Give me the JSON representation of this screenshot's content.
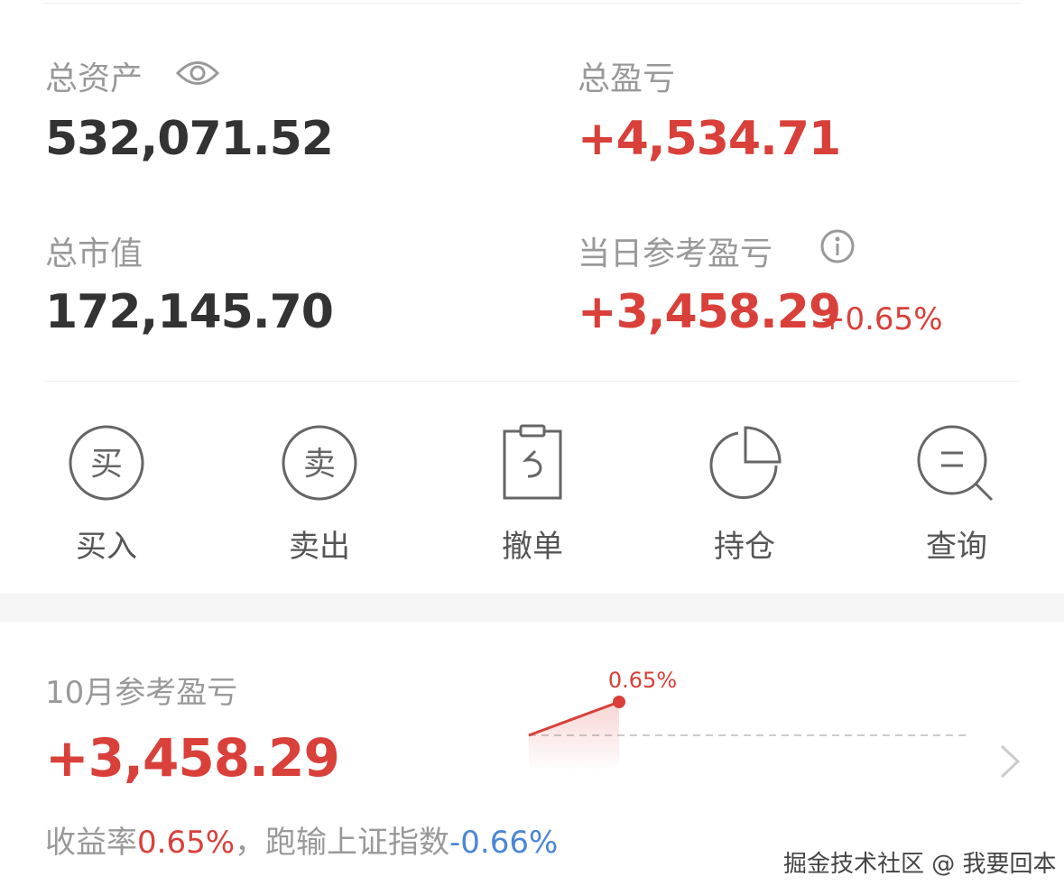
{
  "summary": {
    "total_assets_label": "总资产",
    "total_assets": "532,071.52",
    "total_pnl_label": "总盈亏",
    "total_pnl": "+4,534.71",
    "market_value_label": "总市值",
    "market_value": "172,145.70",
    "daily_pnl_label": "当日参考盈亏",
    "daily_pnl": "+3,458.29",
    "daily_pnl_pct": "+0.65%"
  },
  "actions": [
    {
      "label": "买入",
      "icon_text": "买",
      "icon": "buy-icon"
    },
    {
      "label": "卖出",
      "icon_text": "卖",
      "icon": "sell-icon"
    },
    {
      "label": "撤单",
      "icon": "cancel-order-icon"
    },
    {
      "label": "持仓",
      "icon": "pie-chart-icon"
    },
    {
      "label": "查询",
      "icon": "search-icon"
    }
  ],
  "monthly": {
    "label": "10月参考盈亏",
    "value": "+3,458.29",
    "rate_label": "收益率",
    "rate": "0.65%",
    "sep": "，跑输上证指数",
    "bench": "-0.66%"
  },
  "chart_data": {
    "type": "line",
    "values": [
      0,
      0.65
    ],
    "point_label": "0.65%",
    "baseline": 0,
    "color": "#d9403a"
  },
  "watermark": "掘金技术社区 @ 我要回本",
  "colors": {
    "up": "#d9403a",
    "down": "#4a86d8",
    "muted": "#999999"
  }
}
